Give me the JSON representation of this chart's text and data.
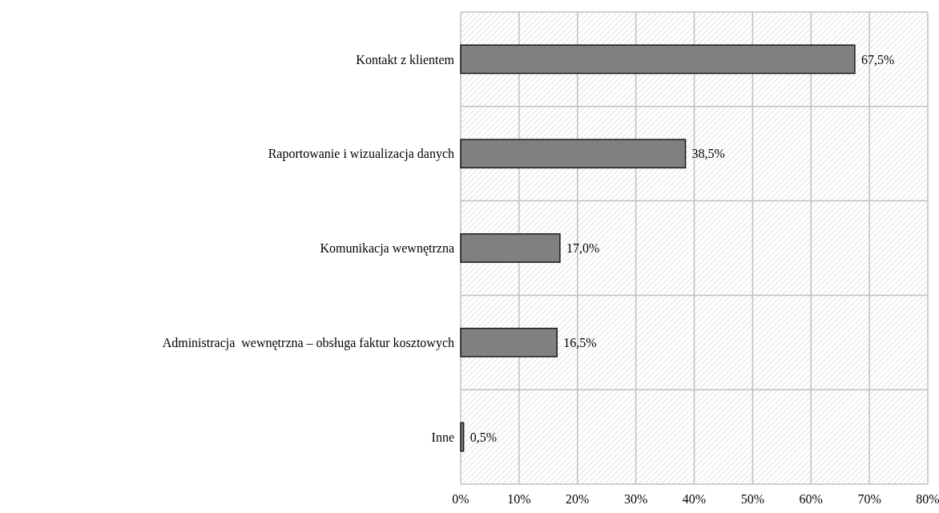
{
  "chart_data": {
    "type": "bar",
    "orientation": "horizontal",
    "categories": [
      "Kontakt z klientem",
      "Raportowanie i wizualizacja danych",
      "Komunikacja wewnętrzna",
      "Administracja  wewnętrzna – obsługa faktur kosztowych",
      "Inne"
    ],
    "values": [
      67.5,
      38.5,
      17.0,
      16.5,
      0.5
    ],
    "value_labels": [
      "67,5%",
      "38,5%",
      "17,0%",
      "16,5%",
      "0,5%"
    ],
    "color": "#808080",
    "xlim": [
      0,
      80
    ],
    "xticks": [
      {
        "value": 0,
        "label": "0%"
      },
      {
        "value": 10,
        "label": "10%"
      },
      {
        "value": 20,
        "label": "20%"
      },
      {
        "value": 30,
        "label": "30%"
      },
      {
        "value": 40,
        "label": "40%"
      },
      {
        "value": 50,
        "label": "50%"
      },
      {
        "value": 60,
        "label": "60%"
      },
      {
        "value": 70,
        "label": "70%"
      },
      {
        "value": 80,
        "label": "80%"
      }
    ],
    "grid": true
  }
}
